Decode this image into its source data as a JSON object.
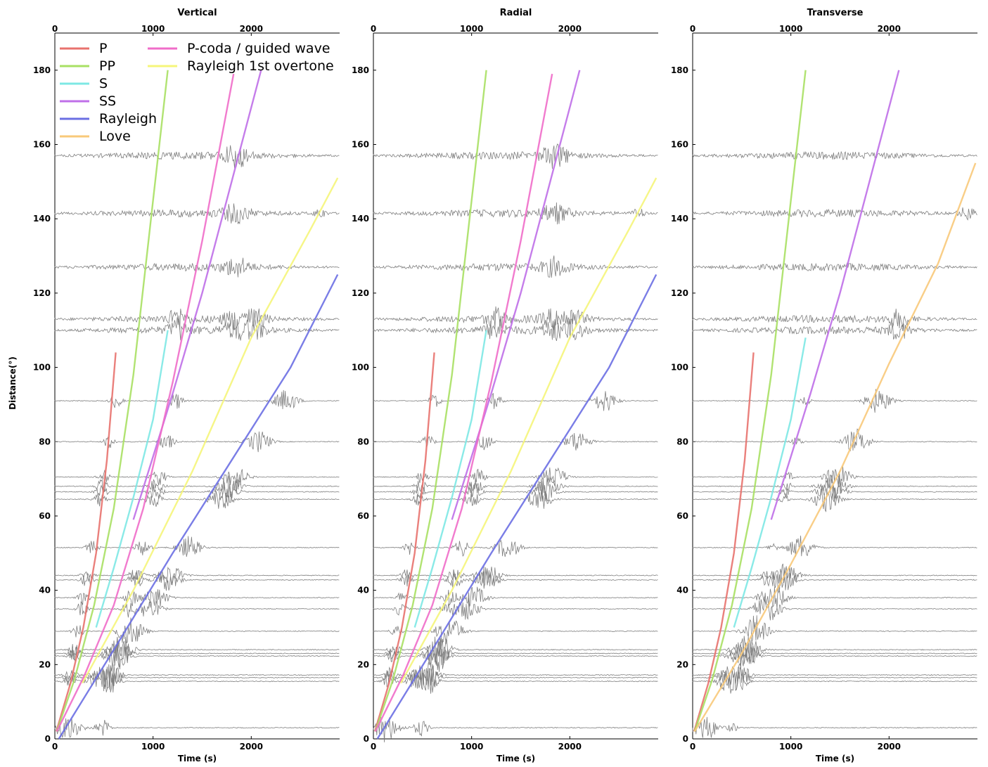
{
  "figure": {
    "ylabel": "Distance(°)",
    "xlabel": "Time (s)"
  },
  "chart_data": [
    {
      "type": "line",
      "title": "Vertical",
      "xlabel": "Time (s)",
      "ylabel": "Distance(°)",
      "xlim": [
        0,
        2900
      ],
      "ylim": [
        0,
        190
      ],
      "xticks": [
        0,
        1000,
        2000
      ],
      "yticks": [
        0,
        20,
        40,
        60,
        80,
        100,
        120,
        140,
        160,
        180
      ],
      "series": [
        {
          "name": "P",
          "color": "#e8726e",
          "x": [
            15,
            160,
            290,
            420,
            530,
            620
          ],
          "y": [
            2,
            15,
            30,
            50,
            75,
            104
          ]
        },
        {
          "name": "PP",
          "color": "#a8e063",
          "x": [
            20,
            200,
            400,
            600,
            800,
            1000,
            1150
          ],
          "y": [
            2,
            16,
            36,
            62,
            98,
            145,
            180
          ]
        },
        {
          "name": "S",
          "color": "#7de8e4",
          "x": [
            420,
            600,
            800,
            1000,
            1150
          ],
          "y": [
            30,
            46,
            65,
            86,
            110
          ]
        },
        {
          "name": "SS",
          "color": "#bf6fe8",
          "x": [
            800,
            1000,
            1200,
            1500,
            1800,
            2100
          ],
          "y": [
            59,
            76,
            93,
            120,
            150,
            180
          ]
        },
        {
          "name": "Rayleigh",
          "color": "#6b6fe3",
          "x": [
            40,
            600,
            1200,
            1800,
            2400,
            2880
          ],
          "y": [
            0,
            24,
            50,
            75,
            100,
            125
          ]
        },
        {
          "name": "Love",
          "color": "#f8c97a",
          "x": [],
          "y": []
        },
        {
          "name": "P-coda / guided wave",
          "color": "#f06dc9",
          "x": [
            20,
            300,
            600,
            900,
            1200,
            1500,
            1820
          ],
          "y": [
            2,
            17,
            36,
            62,
            96,
            134,
            179
          ]
        },
        {
          "name": "Rayleigh 1st overtone",
          "color": "#f5f57a",
          "x": [
            280,
            800,
            1400,
            2000,
            2600,
            2880
          ],
          "y": [
            15,
            40,
            72,
            108,
            137,
            151
          ]
        }
      ]
    },
    {
      "type": "line",
      "title": "Radial",
      "xlabel": "Time (s)",
      "ylabel": "",
      "xlim": [
        0,
        2900
      ],
      "ylim": [
        0,
        190
      ],
      "xticks": [
        0,
        1000,
        2000
      ],
      "yticks": [
        0,
        20,
        40,
        60,
        80,
        100,
        120,
        140,
        160,
        180
      ],
      "series": [
        {
          "name": "P",
          "color": "#e8726e",
          "x": [
            15,
            160,
            290,
            420,
            530,
            620
          ],
          "y": [
            2,
            15,
            30,
            50,
            75,
            104
          ]
        },
        {
          "name": "PP",
          "color": "#a8e063",
          "x": [
            20,
            200,
            400,
            600,
            800,
            1000,
            1150
          ],
          "y": [
            2,
            16,
            36,
            62,
            98,
            145,
            180
          ]
        },
        {
          "name": "S",
          "color": "#7de8e4",
          "x": [
            420,
            600,
            800,
            1000,
            1150
          ],
          "y": [
            30,
            46,
            65,
            86,
            110
          ]
        },
        {
          "name": "SS",
          "color": "#bf6fe8",
          "x": [
            800,
            1000,
            1200,
            1500,
            1800,
            2100
          ],
          "y": [
            59,
            76,
            93,
            120,
            150,
            180
          ]
        },
        {
          "name": "Rayleigh",
          "color": "#6b6fe3",
          "x": [
            40,
            600,
            1200,
            1800,
            2400,
            2880
          ],
          "y": [
            0,
            24,
            50,
            75,
            100,
            125
          ]
        },
        {
          "name": "P-coda / guided wave",
          "color": "#f06dc9",
          "x": [
            20,
            300,
            600,
            900,
            1200,
            1500,
            1820
          ],
          "y": [
            2,
            17,
            36,
            62,
            96,
            134,
            179
          ]
        },
        {
          "name": "Rayleigh 1st overtone",
          "color": "#f5f57a",
          "x": [
            280,
            800,
            1400,
            2000,
            2600,
            2880
          ],
          "y": [
            15,
            40,
            72,
            108,
            137,
            151
          ]
        }
      ]
    },
    {
      "type": "line",
      "title": "Transverse",
      "xlabel": "Time (s)",
      "ylabel": "",
      "xlim": [
        0,
        2900
      ],
      "ylim": [
        0,
        190
      ],
      "xticks": [
        0,
        1000,
        2000
      ],
      "yticks": [
        0,
        20,
        40,
        60,
        80,
        100,
        120,
        140,
        160,
        180
      ],
      "series": [
        {
          "name": "P",
          "color": "#e8726e",
          "x": [
            15,
            160,
            290,
            420,
            530,
            620
          ],
          "y": [
            2,
            15,
            30,
            50,
            75,
            104
          ]
        },
        {
          "name": "PP",
          "color": "#a8e063",
          "x": [
            20,
            200,
            400,
            600,
            800,
            1000,
            1150
          ],
          "y": [
            2,
            16,
            36,
            62,
            98,
            145,
            180
          ]
        },
        {
          "name": "S",
          "color": "#7de8e4",
          "x": [
            420,
            600,
            800,
            1000,
            1150
          ],
          "y": [
            30,
            46,
            65,
            86,
            108
          ]
        },
        {
          "name": "SS",
          "color": "#bf6fe8",
          "x": [
            800,
            1000,
            1200,
            1500,
            1800,
            2100
          ],
          "y": [
            59,
            76,
            93,
            120,
            150,
            180
          ]
        },
        {
          "name": "Love",
          "color": "#f8c97a",
          "x": [
            20,
            500,
            1000,
            1500,
            2000,
            2500,
            2880
          ],
          "y": [
            2,
            23,
            47,
            72,
            101,
            128,
            155
          ]
        }
      ]
    }
  ],
  "legend": {
    "entries": [
      {
        "label": "P",
        "color": "#e8726e"
      },
      {
        "label": "PP",
        "color": "#a8e063"
      },
      {
        "label": "S",
        "color": "#7de8e4"
      },
      {
        "label": "SS",
        "color": "#bf6fe8"
      },
      {
        "label": "Rayleigh",
        "color": "#6b6fe3"
      },
      {
        "label": "Love",
        "color": "#f8c97a"
      },
      {
        "label": "P-coda / guided wave",
        "color": "#f06dc9"
      },
      {
        "label": "Rayleigh 1st overtone",
        "color": "#f5f57a"
      }
    ]
  },
  "traces": {
    "color": "#7f7f7f",
    "distances": [
      3,
      15.5,
      16.5,
      17.2,
      22.3,
      23,
      24,
      29,
      35,
      38,
      42.8,
      44,
      51.5,
      64.5,
      66.5,
      68,
      70.5,
      80,
      91,
      110,
      113,
      127,
      141.5,
      157
    ]
  }
}
